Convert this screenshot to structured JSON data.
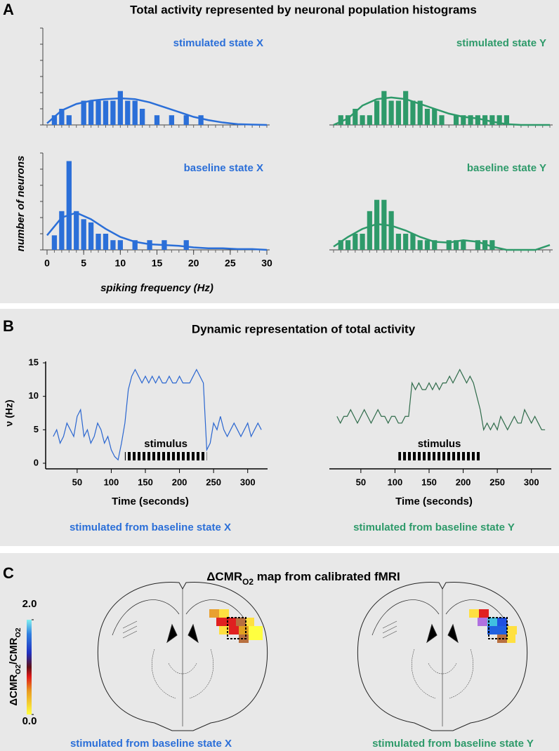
{
  "panels": [
    {
      "label": "A",
      "title": "Total activity represented by neuronal population histograms"
    },
    {
      "label": "B",
      "title": "Dynamic representation of total activity"
    },
    {
      "label": "C",
      "title_parts": [
        "ΔCMR",
        "O2",
        " map from calibrated fMRI"
      ]
    }
  ],
  "chart_data": [
    {
      "type": "histogram",
      "title": "stimulated state X",
      "color": "#2b6fd8",
      "bins": [
        0.5,
        1.5,
        2.5,
        3.5,
        4.5,
        5.5,
        6.5,
        7.5,
        8.5,
        9.5,
        10.5,
        11.5,
        12.5,
        13.5,
        14.5,
        15.5,
        16.5,
        17.5,
        18.5,
        19.5,
        20.5,
        21.5
      ],
      "values": [
        0.6,
        1,
        0.6,
        0,
        1.5,
        1.5,
        1.5,
        1.5,
        1.5,
        2.1,
        1.5,
        1.5,
        1,
        0,
        0.6,
        0,
        0.6,
        0,
        0.6,
        0,
        0.6
      ],
      "fit": {
        "x": [
          0,
          2,
          4,
          6,
          8,
          10,
          12,
          14,
          16,
          18,
          20,
          22,
          24,
          26,
          28,
          30
        ],
        "values": [
          0.1,
          0.9,
          1.3,
          1.5,
          1.6,
          1.65,
          1.6,
          1.4,
          1.1,
          0.8,
          0.5,
          0.3,
          0.15,
          0.05,
          0.02,
          0
        ]
      },
      "xlim": [
        0,
        30
      ],
      "ylim": [
        0,
        6
      ],
      "yticks": [
        0,
        1,
        2,
        3,
        4,
        5,
        6
      ]
    },
    {
      "type": "histogram",
      "title": "stimulated state Y",
      "color": "#2e9a6a",
      "bins": [
        0.5,
        1.5,
        2.5,
        3.5,
        4.5,
        5.5,
        6.5,
        7.5,
        8.5,
        9.5,
        10.5,
        11.5,
        12.5,
        13.5,
        14.5,
        15.5,
        16.5,
        17.5,
        18.5,
        19.5,
        20.5,
        21.5,
        22.5,
        23.5,
        24.5
      ],
      "values": [
        0.6,
        0.6,
        1,
        0.6,
        0.6,
        1.5,
        2.1,
        1.5,
        1.5,
        2.1,
        1.5,
        1.5,
        1,
        1,
        0.6,
        0,
        0.6,
        0.6,
        0.6,
        0.6,
        0.6,
        0.6,
        0.6,
        0.6
      ],
      "fit": {
        "x": [
          0,
          2,
          4,
          6,
          8,
          10,
          12,
          14,
          16,
          18,
          20,
          22,
          24,
          26,
          28,
          30
        ],
        "values": [
          0,
          0.4,
          1.2,
          1.6,
          1.7,
          1.6,
          1.3,
          1,
          0.7,
          0.5,
          0.4,
          0.2,
          0.05,
          0,
          0,
          0
        ]
      },
      "xlim": [
        0,
        30
      ],
      "ylim": [
        0,
        6
      ]
    },
    {
      "type": "histogram",
      "title": "baseline state X",
      "color": "#2b6fd8",
      "xlabel": "spiking frequency (Hz)",
      "ylabel": "number of neurons",
      "bins": [
        0.5,
        1.5,
        2.5,
        3.5,
        4.5,
        5.5,
        6.5,
        7.5,
        8.5,
        9.5,
        10.5,
        11.5,
        12.5,
        13.5,
        14.5,
        15.5,
        16.5,
        17.5,
        18.5,
        19.5
      ],
      "values": [
        0.9,
        2.4,
        5.5,
        2.4,
        1.9,
        1.7,
        1,
        1,
        0.6,
        0.6,
        0,
        0.6,
        0,
        0.6,
        0,
        0.6,
        0,
        0,
        0.6
      ],
      "fit": {
        "x": [
          0,
          2,
          4,
          6,
          8,
          10,
          12,
          14,
          16,
          18,
          20,
          22,
          24,
          26,
          28,
          30
        ],
        "values": [
          0.9,
          2,
          2.3,
          1.9,
          1.3,
          0.8,
          0.5,
          0.35,
          0.3,
          0.25,
          0.15,
          0.1,
          0.1,
          0.05,
          0.05,
          0
        ]
      },
      "xlim": [
        0,
        30
      ],
      "ylim": [
        0,
        6
      ],
      "yticks": [
        0,
        1,
        2,
        3,
        4,
        5,
        6
      ],
      "xticks": [
        0,
        5,
        10,
        15,
        20,
        25,
        30
      ]
    },
    {
      "type": "histogram",
      "title": "baseline state Y",
      "color": "#2e9a6a",
      "bins": [
        0.5,
        1.5,
        2.5,
        3.5,
        4.5,
        5.5,
        6.5,
        7.5,
        8.5,
        9.5,
        10.5,
        11.5,
        12.5,
        13.5,
        14.5,
        15.5,
        16.5,
        17.5,
        18.5,
        19.5,
        20.5,
        21.5,
        22.5
      ],
      "values": [
        0.6,
        0.6,
        1,
        1,
        2.4,
        3.1,
        3.1,
        2.4,
        1,
        1,
        1,
        0.6,
        0.6,
        0.6,
        0,
        0.6,
        0.6,
        0.6,
        0,
        0.6,
        0.6,
        0.6
      ],
      "fit": {
        "x": [
          0,
          2,
          4,
          6,
          8,
          10,
          12,
          14,
          16,
          18,
          20,
          22,
          24,
          26,
          28,
          30
        ],
        "values": [
          0.2,
          0.8,
          1.3,
          1.6,
          1.5,
          1.2,
          0.8,
          0.5,
          0.45,
          0.6,
          0.5,
          0.2,
          0,
          0,
          0,
          0.3
        ]
      },
      "xlim": [
        0,
        30
      ],
      "ylim": [
        0,
        6
      ]
    },
    {
      "type": "line",
      "color": "#2a66d0",
      "ylabel": "ν (Hz)",
      "xlabel": "Time (seconds)",
      "caption": "stimulated from baseline state X",
      "caption_color": "#2b6fd8",
      "stimulus": {
        "label": "stimulus",
        "start": 120,
        "end": 240
      },
      "x": [
        15,
        20,
        25,
        30,
        35,
        40,
        45,
        50,
        55,
        60,
        65,
        70,
        75,
        80,
        85,
        90,
        95,
        100,
        105,
        110,
        115,
        120,
        125,
        130,
        135,
        140,
        145,
        150,
        155,
        160,
        165,
        170,
        175,
        180,
        185,
        190,
        195,
        200,
        205,
        210,
        215,
        220,
        225,
        230,
        235,
        240,
        245,
        250,
        255,
        260,
        265,
        270,
        275,
        280,
        285,
        290,
        295,
        300,
        305,
        310,
        315,
        320
      ],
      "values": [
        4,
        5,
        3,
        4,
        6,
        5,
        4,
        7,
        8,
        4,
        5,
        3,
        4,
        6,
        5,
        3,
        4,
        2,
        1,
        0.5,
        3,
        6,
        11,
        13,
        14,
        13,
        12,
        13,
        12,
        13,
        12,
        13,
        12,
        12,
        13,
        12,
        12,
        13,
        12,
        12,
        12,
        13,
        14,
        13,
        12,
        2,
        3,
        6,
        5,
        7,
        5,
        4,
        5,
        6,
        5,
        4,
        5,
        6,
        4,
        5,
        6,
        5
      ],
      "xlim": [
        10,
        325
      ],
      "ylim": [
        0,
        15
      ],
      "yticks": [
        0,
        5,
        10,
        15
      ],
      "xticks": [
        50,
        100,
        150,
        200,
        250,
        300
      ]
    },
    {
      "type": "line",
      "color": "#2f6b4a",
      "xlabel": "Time (seconds)",
      "caption": "stimulated from baseline state Y",
      "caption_color": "#2e9a6a",
      "stimulus": {
        "label": "stimulus",
        "start": 105,
        "end": 225
      },
      "x": [
        15,
        20,
        25,
        30,
        35,
        40,
        45,
        50,
        55,
        60,
        65,
        70,
        75,
        80,
        85,
        90,
        95,
        100,
        105,
        110,
        115,
        120,
        125,
        130,
        135,
        140,
        145,
        150,
        155,
        160,
        165,
        170,
        175,
        180,
        185,
        190,
        195,
        200,
        205,
        210,
        215,
        220,
        225,
        230,
        235,
        240,
        245,
        250,
        255,
        260,
        265,
        270,
        275,
        280,
        285,
        290,
        295,
        300,
        305,
        310,
        315,
        320
      ],
      "values": [
        7,
        6,
        7,
        7,
        8,
        7,
        6,
        7,
        8,
        7,
        6,
        7,
        8,
        7,
        7,
        6,
        7,
        7,
        6,
        6,
        7,
        7,
        12,
        11,
        12,
        11,
        11,
        12,
        11,
        12,
        11,
        12,
        12,
        13,
        12,
        13,
        14,
        13,
        12,
        13,
        12,
        10,
        8,
        5,
        6,
        5,
        6,
        5,
        7,
        6,
        5,
        6,
        7,
        6,
        6,
        8,
        7,
        6,
        7,
        6,
        5,
        5
      ],
      "xlim": [
        10,
        325
      ],
      "ylim": [
        0,
        15
      ],
      "xticks": [
        50,
        100,
        150,
        200,
        250,
        300
      ]
    }
  ],
  "panel_c": {
    "colorbar": {
      "label_parts": [
        "ΔCMR",
        "O2",
        "/CMR",
        "O2"
      ],
      "lim": [
        0,
        2
      ],
      "ticks": [
        {
          "value": 2,
          "label": "2.0"
        },
        {
          "value": 0,
          "label": "0.0"
        }
      ]
    },
    "captions": [
      "stimulated from baseline state X",
      "stimulated from baseline state Y"
    ],
    "caption_colors": [
      "#2b6fd8",
      "#2e9a6a"
    ]
  }
}
